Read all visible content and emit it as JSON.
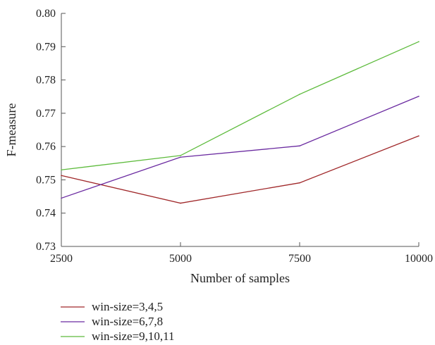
{
  "chart_data": {
    "type": "line",
    "title": "",
    "xlabel": "Number of samples",
    "ylabel": "F-measure",
    "x": [
      2500,
      5000,
      7500,
      10000
    ],
    "x_tick_labels": [
      "2500",
      "5000",
      "7500",
      "10000"
    ],
    "y_tick_labels": [
      "0.73",
      "0.74",
      "0.75",
      "0.76",
      "0.77",
      "0.78",
      "0.79",
      "0.80"
    ],
    "xlim": [
      2500,
      10000
    ],
    "ylim": [
      0.73,
      0.8
    ],
    "grid": false,
    "legend_position": "bottom-left",
    "series": [
      {
        "name": "win-size=3,4,5",
        "color": "#a0282a",
        "values": [
          0.7513,
          0.743,
          0.7491,
          0.7632
        ]
      },
      {
        "name": "win-size=6,7,8",
        "color": "#6a2aa0",
        "values": [
          0.7445,
          0.7568,
          0.7602,
          0.7751
        ]
      },
      {
        "name": "win-size=9,10,11",
        "color": "#5dbb3c",
        "values": [
          0.753,
          0.7573,
          0.7757,
          0.7915
        ]
      }
    ]
  }
}
